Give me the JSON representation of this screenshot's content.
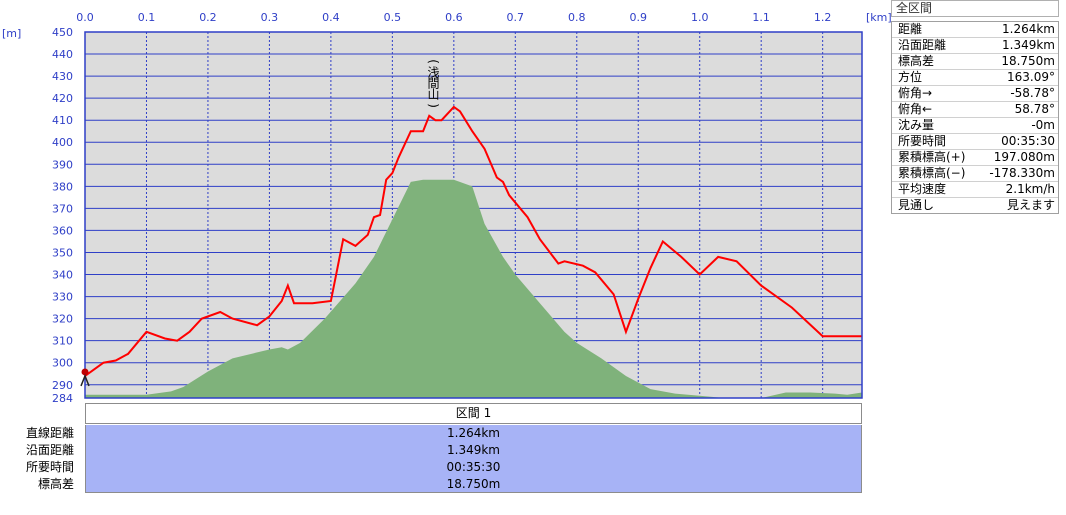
{
  "chart_data": {
    "type": "line",
    "title": "",
    "xunit": "[km]",
    "yunit": "[m]",
    "xlim": [
      0,
      1.264
    ],
    "ylim": [
      284,
      450
    ],
    "x_ticks": [
      "0.0",
      "0.1",
      "0.2",
      "0.3",
      "0.4",
      "0.5",
      "0.6",
      "0.7",
      "0.8",
      "0.9",
      "1.0",
      "1.1",
      "1.2"
    ],
    "y_ticks": [
      450,
      440,
      430,
      420,
      410,
      400,
      390,
      380,
      370,
      360,
      350,
      340,
      330,
      320,
      310,
      300,
      290,
      284
    ],
    "grid": true,
    "series": [
      {
        "type": "area",
        "color": "#7fb27b",
        "x": [
          0,
          0.1,
          0.14,
          0.16,
          0.2,
          0.24,
          0.3,
          0.32,
          0.33,
          0.35,
          0.39,
          0.44,
          0.47,
          0.5,
          0.53,
          0.55,
          0.6,
          0.63,
          0.65,
          0.68,
          0.7,
          0.74,
          0.78,
          0.8,
          0.84,
          0.88,
          0.92,
          0.96,
          1.0,
          1.04,
          1.08,
          1.1,
          1.14,
          1.18,
          1.22,
          1.24,
          1.264
        ],
        "y": [
          285.5,
          285.5,
          287,
          289,
          296,
          302,
          306,
          307,
          306,
          309,
          320,
          336,
          348,
          365,
          382,
          383,
          383,
          380,
          363,
          348,
          340,
          327,
          314,
          309,
          302,
          294,
          288,
          286,
          285,
          284,
          284,
          284,
          286.5,
          286.5,
          286,
          285.5,
          286.5
        ]
      },
      {
        "type": "line",
        "color": "#ff0000",
        "x": [
          0,
          0.01,
          0.03,
          0.05,
          0.07,
          0.1,
          0.13,
          0.15,
          0.17,
          0.19,
          0.22,
          0.24,
          0.28,
          0.3,
          0.32,
          0.33,
          0.34,
          0.37,
          0.4,
          0.42,
          0.44,
          0.46,
          0.47,
          0.48,
          0.49,
          0.5,
          0.51,
          0.53,
          0.55,
          0.56,
          0.57,
          0.58,
          0.6,
          0.61,
          0.63,
          0.65,
          0.67,
          0.68,
          0.69,
          0.72,
          0.74,
          0.77,
          0.78,
          0.81,
          0.83,
          0.86,
          0.88,
          0.9,
          0.92,
          0.94,
          0.97,
          1.0,
          1.03,
          1.06,
          1.1,
          1.15,
          1.2,
          1.23,
          1.264
        ],
        "y": [
          294,
          296,
          300,
          301,
          304,
          314,
          311,
          310,
          314,
          320,
          323,
          320,
          317,
          321,
          328,
          335,
          327,
          327,
          328,
          356,
          353,
          358,
          366,
          367,
          383,
          386,
          393,
          405,
          405,
          412,
          410,
          410,
          416,
          414,
          405,
          397,
          384,
          382,
          376,
          366,
          356,
          345,
          346,
          344,
          341,
          331,
          314,
          329,
          343,
          355,
          348,
          340,
          348,
          346,
          335,
          325,
          312,
          312,
          312
        ]
      }
    ],
    "annotations": [
      {
        "text": "(浅間山)",
        "x": 0.567,
        "y": 413
      }
    ]
  },
  "section": {
    "label": "区間 1"
  },
  "summary": [
    {
      "label": "直線距離",
      "value": "1.264km"
    },
    {
      "label": "沿面距離",
      "value": "1.349km"
    },
    {
      "label": "所要時間",
      "value": "00:35:30"
    },
    {
      "label": "標高差",
      "value": "18.750m"
    }
  ],
  "stats": {
    "header": "全区間",
    "rows": [
      {
        "label": "距離",
        "value": "1.264km"
      },
      {
        "label": "沿面距離",
        "value": "1.349km"
      },
      {
        "label": "標高差",
        "value": "18.750m"
      },
      {
        "label": "方位",
        "value": "163.09°"
      },
      {
        "label": "俯角→",
        "value": "-58.78°"
      },
      {
        "label": "俯角←",
        "value": "58.78°"
      },
      {
        "label": "沈み量",
        "value": "-0m"
      },
      {
        "label": "所要時間",
        "value": "00:35:30"
      },
      {
        "label": "累積標高(+)",
        "value": "197.080m"
      },
      {
        "label": "累積標高(−)",
        "value": "-178.330m"
      },
      {
        "label": "平均速度",
        "value": "2.1km/h"
      },
      {
        "label": "見通し",
        "value": "見えます"
      }
    ]
  },
  "colors": {
    "plot_bg": "#dcdcdc",
    "grid": "#2f3fc7",
    "frame": "#2f3fc7",
    "route": "#ff0000",
    "terrain": "#7fb27b",
    "summary_bg": "#a7b3f6"
  }
}
